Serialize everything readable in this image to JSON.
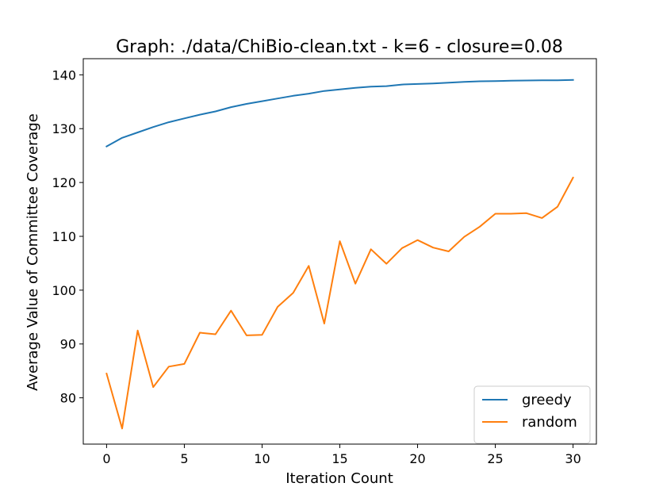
{
  "chart_data": {
    "type": "line",
    "title": "Graph: ./data/ChiBio-clean.txt - k=6 - closure=0.08",
    "xlabel": "Iteration Count",
    "ylabel": "Average Value of Committee Coverage",
    "xlim": [
      -1.5,
      31.5
    ],
    "ylim": [
      71.4,
      143.0
    ],
    "xticks": [
      0,
      5,
      10,
      15,
      20,
      25,
      30
    ],
    "yticks": [
      80,
      90,
      100,
      110,
      120,
      130,
      140
    ],
    "grid": false,
    "legend_position": "lower right",
    "x": [
      0,
      1,
      2,
      3,
      4,
      5,
      6,
      7,
      8,
      9,
      10,
      11,
      12,
      13,
      14,
      15,
      16,
      17,
      18,
      19,
      20,
      21,
      22,
      23,
      24,
      25,
      26,
      27,
      28,
      29,
      30
    ],
    "series": [
      {
        "name": "greedy",
        "color": "#1f77b4",
        "values": [
          126.7,
          128.3,
          129.3,
          130.3,
          131.2,
          131.9,
          132.6,
          133.2,
          134.0,
          134.6,
          135.1,
          135.6,
          136.1,
          136.5,
          137.0,
          137.3,
          137.6,
          137.8,
          137.9,
          138.2,
          138.3,
          138.4,
          138.55,
          138.7,
          138.8,
          138.85,
          138.9,
          138.95,
          139.0,
          139.0,
          139.05
        ]
      },
      {
        "name": "random",
        "color": "#ff7f0e",
        "values": [
          84.5,
          74.3,
          92.5,
          82.0,
          85.8,
          86.3,
          92.1,
          91.8,
          96.2,
          91.6,
          91.7,
          96.9,
          99.5,
          104.5,
          93.8,
          109.1,
          101.2,
          107.6,
          104.9,
          107.8,
          109.3,
          107.9,
          107.2,
          109.9,
          111.8,
          114.2,
          114.2,
          114.3,
          113.4,
          115.5,
          120.9
        ]
      }
    ]
  }
}
